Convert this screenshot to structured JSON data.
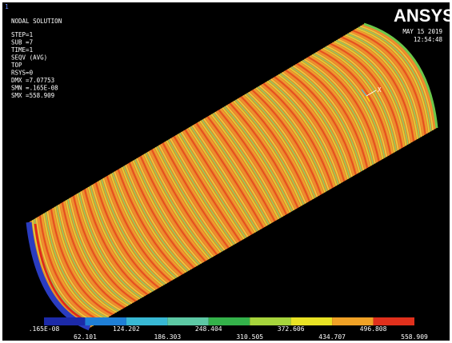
{
  "window_number": "1",
  "info": {
    "title": "NODAL SOLUTION",
    "lines": [
      "STEP=1",
      "SUB =7",
      "TIME=1",
      "SEQV     (AVG)",
      "TOP",
      "RSYS=0",
      "DMX =7.07753",
      "SMN =.165E-08",
      "SMX =558.909"
    ]
  },
  "logo": "ANSYS",
  "date": "MAY 15 2019",
  "time": "12:54:48",
  "axis_triad": "X",
  "legend": {
    "colors": [
      "#1c2aa8",
      "#1f7fd6",
      "#38b8d4",
      "#5cc8a4",
      "#34b24a",
      "#a6d43c",
      "#e8e224",
      "#f0a226",
      "#e0301c"
    ],
    "labels": [
      ".165E-08",
      "62.101",
      "124.202",
      "186.303",
      "248.404",
      "310.505",
      "372.606",
      "434.707",
      "496.808",
      "558.909"
    ]
  }
}
